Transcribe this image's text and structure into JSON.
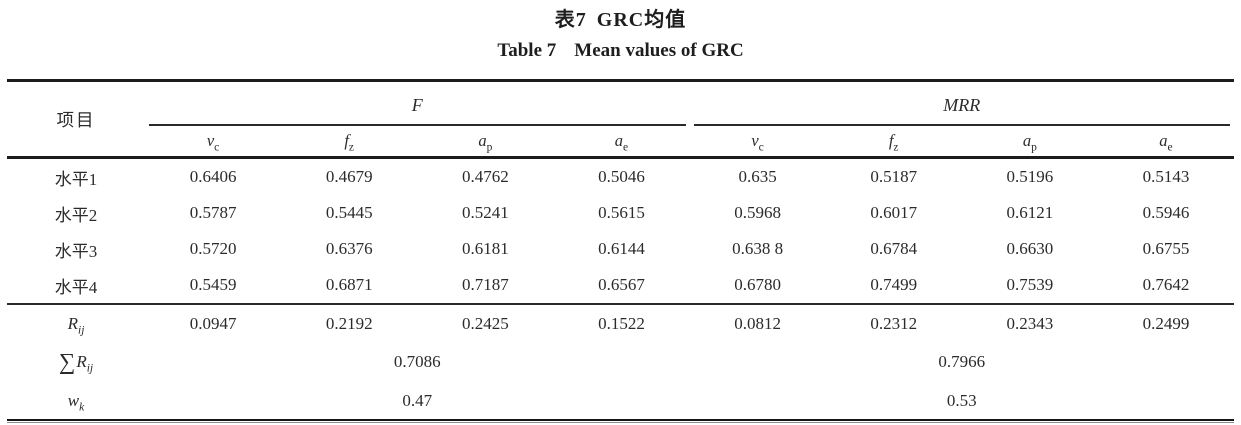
{
  "titles": {
    "zh_label": "表7",
    "zh_text": "GRC均值",
    "en_label": "Table 7",
    "en_text": "Mean values of GRC"
  },
  "colors": {
    "text": "#2b2b2b",
    "rule": "#1c1c1c",
    "background": "#ffffff"
  },
  "table": {
    "item_header": "项目",
    "groups": [
      {
        "label": "F"
      },
      {
        "label": "MRR"
      }
    ],
    "sub_headers": [
      {
        "base": "v",
        "sub": "c"
      },
      {
        "base": "f",
        "sub": "z"
      },
      {
        "base": "a",
        "sub": "p"
      },
      {
        "base": "a",
        "sub": "e"
      },
      {
        "base": "v",
        "sub": "c"
      },
      {
        "base": "f",
        "sub": "z"
      },
      {
        "base": "a",
        "sub": "p"
      },
      {
        "base": "a",
        "sub": "e"
      }
    ],
    "level_rows": [
      {
        "label": "水平1",
        "cells": [
          "0.6406",
          "0.4679",
          "0.4762",
          "0.5046",
          "0.635",
          "0.5187",
          "0.5196",
          "0.5143"
        ]
      },
      {
        "label": "水平2",
        "cells": [
          "0.5787",
          "0.5445",
          "0.5241",
          "0.5615",
          "0.5968",
          "0.6017",
          "0.6121",
          "0.5946"
        ]
      },
      {
        "label": "水平3",
        "cells": [
          "0.5720",
          "0.6376",
          "0.6181",
          "0.6144",
          "0.638 8",
          "0.6784",
          "0.6630",
          "0.6755"
        ]
      },
      {
        "label": "水平4",
        "cells": [
          "0.5459",
          "0.6871",
          "0.7187",
          "0.6567",
          "0.6780",
          "0.7499",
          "0.7539",
          "0.7642"
        ]
      }
    ],
    "rij_row": {
      "label": {
        "base": "R",
        "sub": "ij"
      },
      "cells": [
        "0.0947",
        "0.2192",
        "0.2425",
        "0.1522",
        "0.0812",
        "0.2312",
        "0.2343",
        "0.2499"
      ]
    },
    "sum_row": {
      "label": {
        "prefix": "∑",
        "base": "R",
        "sub": "ij"
      },
      "merged_values": [
        "0.7086",
        "0.7966"
      ]
    },
    "wk_row": {
      "label": {
        "base": "w",
        "sub": "k"
      },
      "merged_values": [
        "0.47",
        "0.53"
      ]
    }
  }
}
